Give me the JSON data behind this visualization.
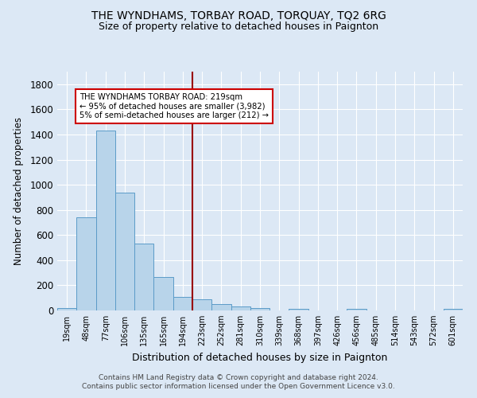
{
  "title": "THE WYNDHAMS, TORBAY ROAD, TORQUAY, TQ2 6RG",
  "subtitle": "Size of property relative to detached houses in Paignton",
  "xlabel": "Distribution of detached houses by size in Paignton",
  "ylabel": "Number of detached properties",
  "footer_line1": "Contains HM Land Registry data © Crown copyright and database right 2024.",
  "footer_line2": "Contains public sector information licensed under the Open Government Licence v3.0.",
  "bins": [
    "19sqm",
    "48sqm",
    "77sqm",
    "106sqm",
    "135sqm",
    "165sqm",
    "194sqm",
    "223sqm",
    "252sqm",
    "281sqm",
    "310sqm",
    "339sqm",
    "368sqm",
    "397sqm",
    "426sqm",
    "456sqm",
    "485sqm",
    "514sqm",
    "543sqm",
    "572sqm",
    "601sqm"
  ],
  "values": [
    20,
    740,
    1430,
    935,
    535,
    265,
    105,
    90,
    48,
    30,
    17,
    0,
    15,
    0,
    0,
    13,
    0,
    0,
    0,
    0,
    13
  ],
  "bar_color": "#b8d4ea",
  "bar_edge_color": "#5b9bc8",
  "bg_color": "#dce8f5",
  "plot_bg_color": "#dce8f5",
  "grid_color": "#ffffff",
  "vline_color": "#990000",
  "annotation_text": "THE WYNDHAMS TORBAY ROAD: 219sqm\n← 95% of detached houses are smaller (3,982)\n5% of semi-detached houses are larger (212) →",
  "annotation_box_color": "#ffffff",
  "annotation_box_edge_color": "#cc0000",
  "ylim": [
    0,
    1900
  ],
  "yticks": [
    0,
    200,
    400,
    600,
    800,
    1000,
    1200,
    1400,
    1600,
    1800
  ]
}
